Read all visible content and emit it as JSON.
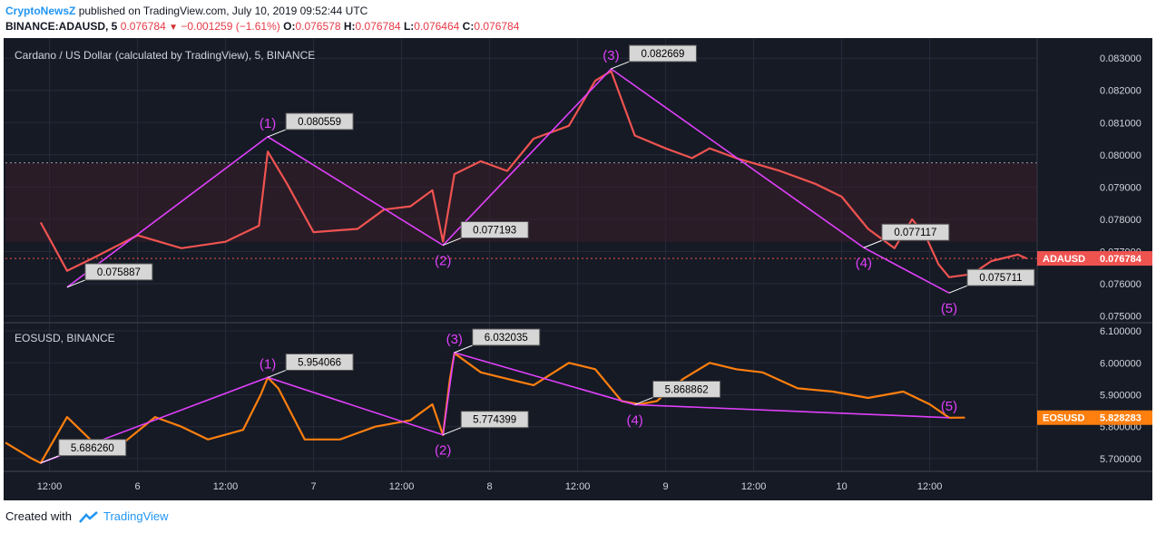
{
  "header": {
    "author": "CryptoNewsZ",
    "published": "published on TradingView.com, July 10, 2019 09:52:44 UTC",
    "symbol": "BINANCE:ADAUSD, 5",
    "last": "0.076784",
    "change": "−0.001259 (−1.61%)",
    "o_label": "O:",
    "o_value": "0.076578",
    "h_label": "H:",
    "h_value": "0.076784",
    "l_label": "L:",
    "l_value": "0.076464",
    "c_label": "C:",
    "c_value": "0.076784"
  },
  "footer": {
    "created_with": "Created with",
    "brand": "TradingView"
  },
  "colors": {
    "background": "#161a25",
    "grid": "#262b3b",
    "magenta": "#e040fb",
    "ada_down": "#ef5350",
    "ada_up": "#26a69a",
    "eos": "#ff7f0e",
    "footer_brand": "#2196f3"
  },
  "chart_data": [
    {
      "type": "line",
      "title": "Cardano / US Dollar (calculated by TradingView), 5, BINANCE",
      "series": [
        {
          "name": "ADAUSD",
          "x": [
            0.4,
            0.7,
            1.0,
            1.5,
            2.0,
            2.5,
            2.88,
            2.98,
            3.2,
            3.5,
            4.0,
            4.3,
            4.6,
            4.85,
            4.97,
            5.1,
            5.4,
            5.7,
            6.0,
            6.4,
            6.7,
            6.88,
            7.15,
            7.5,
            7.8,
            8.0,
            8.3,
            8.8,
            9.2,
            9.5,
            9.8,
            10.1,
            10.3,
            10.45,
            10.6,
            10.72,
            10.98,
            11.2,
            11.5,
            11.6
          ],
          "values": [
            0.0779,
            0.0764,
            0.0768,
            0.0775,
            0.0771,
            0.0773,
            0.0778,
            0.0801,
            0.0791,
            0.0776,
            0.0777,
            0.0783,
            0.0784,
            0.0789,
            0.0773,
            0.0794,
            0.0798,
            0.0795,
            0.0805,
            0.0809,
            0.0823,
            0.0826,
            0.0806,
            0.0802,
            0.0799,
            0.0802,
            0.0799,
            0.0795,
            0.0791,
            0.0787,
            0.0777,
            0.0771,
            0.078,
            0.0775,
            0.0766,
            0.0762,
            0.0763,
            0.0767,
            0.0769,
            0.076784
          ]
        }
      ],
      "waves": [
        {
          "label": "(1)",
          "price": "0.080559",
          "x": 2.98,
          "y": 0.080559
        },
        {
          "label": "(2)",
          "price": "0.077193",
          "x": 4.97,
          "y": 0.077193
        },
        {
          "label": "(3)",
          "price": "0.082669",
          "x": 6.88,
          "y": 0.082669
        },
        {
          "label": "(4)",
          "price": "0.077117",
          "x": 9.75,
          "y": 0.077117
        },
        {
          "label": "(5)",
          "price": "0.075711",
          "x": 10.72,
          "y": 0.075711
        },
        {
          "label": "",
          "price": "0.075887",
          "x": 0.7,
          "y": 0.075887
        }
      ],
      "last_label": "ADAUSD",
      "last_price": "0.076784",
      "yticks": [
        "0.075000",
        "0.076000",
        "0.077000",
        "0.078000",
        "0.079000",
        "0.080000",
        "0.081000",
        "0.082000",
        "0.083000"
      ],
      "ylim": [
        0.0749,
        0.0834
      ]
    },
    {
      "type": "line",
      "title": "EOSUSD, BINANCE",
      "series": [
        {
          "name": "EOSUSD",
          "x": [
            0,
            0.3,
            0.4,
            0.7,
            1.0,
            1.3,
            1.7,
            2.0,
            2.3,
            2.7,
            2.9,
            2.98,
            3.1,
            3.4,
            3.8,
            4.2,
            4.6,
            4.85,
            4.97,
            5.05,
            5.1,
            5.4,
            5.7,
            6.0,
            6.4,
            6.7,
            7.0,
            7.2,
            7.4,
            7.7,
            8.0,
            8.3,
            8.6,
            9.0,
            9.4,
            9.8,
            10.2,
            10.5,
            10.72,
            10.9
          ],
          "values": [
            5.75,
            5.7,
            5.686,
            5.83,
            5.75,
            5.74,
            5.83,
            5.8,
            5.76,
            5.79,
            5.9,
            5.954,
            5.92,
            5.76,
            5.76,
            5.8,
            5.82,
            5.87,
            5.774,
            5.95,
            6.03,
            5.97,
            5.95,
            5.93,
            6.0,
            5.98,
            5.88,
            5.87,
            5.88,
            5.95,
            6.0,
            5.98,
            5.97,
            5.92,
            5.91,
            5.89,
            5.91,
            5.87,
            5.828,
            5.828283
          ]
        }
      ],
      "waves": [
        {
          "label": "(1)",
          "price": "5.954066",
          "x": 2.98,
          "y": 5.954066
        },
        {
          "label": "(2)",
          "price": "5.774399",
          "x": 4.97,
          "y": 5.774399
        },
        {
          "label": "(3)",
          "price": "6.032035",
          "x": 5.1,
          "y": 6.032035
        },
        {
          "label": "(4)",
          "price": "5.868862",
          "x": 7.15,
          "y": 5.868862
        },
        {
          "label": "(5)",
          "price": "",
          "x": 10.72,
          "y": 5.828
        },
        {
          "label": "",
          "price": "5.686260",
          "x": 0.4,
          "y": 5.68626
        }
      ],
      "last_label": "EOSUSD",
      "last_price": "5.828283",
      "yticks": [
        "5.700000",
        "5.800000",
        "5.900000",
        "6.000000",
        "6.100000"
      ],
      "ylim": [
        5.66,
        6.12
      ]
    }
  ],
  "time_axis": {
    "xlim": [
      0,
      11.72
    ],
    "ticks": [
      {
        "label": "12:00",
        "x": 0.5
      },
      {
        "label": "6",
        "x": 1.5
      },
      {
        "label": "12:00",
        "x": 2.5
      },
      {
        "label": "7",
        "x": 3.5
      },
      {
        "label": "12:00",
        "x": 4.5
      },
      {
        "label": "8",
        "x": 5.5
      },
      {
        "label": "12:00",
        "x": 6.5
      },
      {
        "label": "9",
        "x": 7.5
      },
      {
        "label": "12:00",
        "x": 8.5
      },
      {
        "label": "10",
        "x": 9.5
      },
      {
        "label": "12:00",
        "x": 10.5
      }
    ]
  }
}
